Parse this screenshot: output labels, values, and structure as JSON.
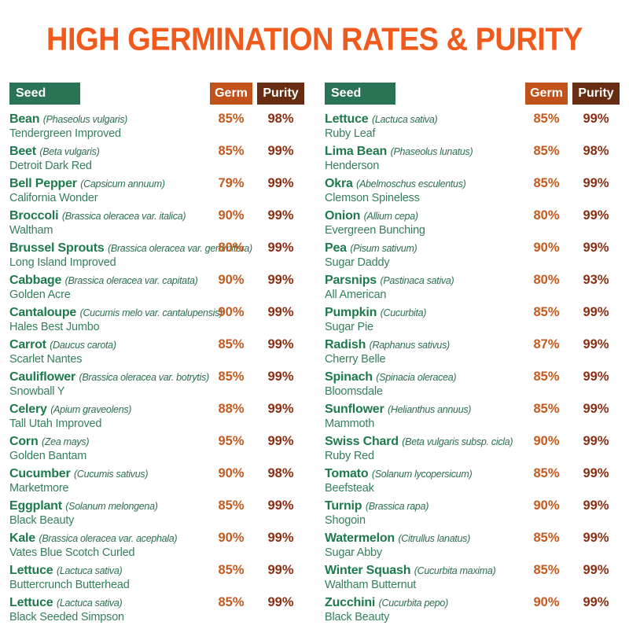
{
  "title": "HIGH GERMINATION RATES & PURITY",
  "colors": {
    "title": "#F05A1D",
    "seed_badge": "#2B7355",
    "germ_badge": "#C0521A",
    "purity_badge": "#672C11",
    "seed_name": "#1E7A4D",
    "latin": "#2C6E4E",
    "variety": "#357F5B",
    "germ_value": "#C45A1D",
    "purity_value": "#8A2E12"
  },
  "headers": {
    "seed": "Seed",
    "germ": "Germ",
    "purity": "Purity"
  },
  "columns": {
    "left": {
      "rows": [
        {
          "name": "Bean",
          "latin": "(Phaseolus vulgaris)",
          "variety": "Tendergreen Improved",
          "germ": "85%",
          "purity": "98%"
        },
        {
          "name": "Beet",
          "latin": "(Beta vulgaris)",
          "variety": "Detroit Dark Red",
          "germ": "85%",
          "purity": "99%"
        },
        {
          "name": "Bell Pepper",
          "latin": "(Capsicum annuum)",
          "variety": "California Wonder",
          "germ": "79%",
          "purity": "99%"
        },
        {
          "name": "Broccoli",
          "latin": "(Brassica oleracea var. italica)",
          "variety": "Waltham",
          "germ": "90%",
          "purity": "99%"
        },
        {
          "name": "Brussel Sprouts",
          "latin": "(Brassica oleracea var. gemmifera)",
          "variety": "Long Island Improved",
          "germ": "80%",
          "purity": "99%"
        },
        {
          "name": "Cabbage",
          "latin": "(Brassica oleracea var. capitata)",
          "variety": "Golden Acre",
          "germ": "90%",
          "purity": "99%"
        },
        {
          "name": "Cantaloupe",
          "latin": "(Cucumis melo var. cantalupensis)",
          "variety": "Hales Best Jumbo",
          "germ": "90%",
          "purity": "99%"
        },
        {
          "name": "Carrot",
          "latin": "(Daucus carota)",
          "variety": "Scarlet Nantes",
          "germ": "85%",
          "purity": "99%"
        },
        {
          "name": "Cauliflower",
          "latin": "(Brassica oleracea var. botrytis)",
          "variety": "Snowball Y",
          "germ": "85%",
          "purity": "99%"
        },
        {
          "name": "Celery",
          "latin": "(Apium graveolens)",
          "variety": "Tall Utah Improved",
          "germ": "88%",
          "purity": "99%"
        },
        {
          "name": "Corn",
          "latin": "(Zea mays)",
          "variety": "Golden Bantam",
          "germ": "95%",
          "purity": "99%"
        },
        {
          "name": "Cucumber",
          "latin": "(Cucumis sativus)",
          "variety": "Marketmore",
          "germ": "90%",
          "purity": "98%"
        },
        {
          "name": "Eggplant",
          "latin": "(Solanum melongena)",
          "variety": "Black Beauty",
          "germ": "85%",
          "purity": "99%"
        },
        {
          "name": "Kale",
          "latin": "(Brassica oleracea var. acephala)",
          "variety": "Vates Blue Scotch Curled",
          "germ": "90%",
          "purity": "99%"
        },
        {
          "name": "Lettuce",
          "latin": "(Lactuca sativa)",
          "variety": "Buttercrunch Butterhead",
          "germ": "85%",
          "purity": "99%"
        },
        {
          "name": "Lettuce",
          "latin": "(Lactuca sativa)",
          "variety": "Black Seeded Simpson",
          "germ": "85%",
          "purity": "99%"
        }
      ]
    },
    "right": {
      "rows": [
        {
          "name": "Lettuce",
          "latin": "(Lactuca sativa)",
          "variety": "Ruby Leaf",
          "germ": "85%",
          "purity": "99%"
        },
        {
          "name": "Lima Bean",
          "latin": "(Phaseolus lunatus)",
          "variety": "Henderson",
          "germ": "85%",
          "purity": "98%"
        },
        {
          "name": "Okra",
          "latin": "(Abelmoschus esculentus)",
          "variety": "Clemson Spineless",
          "germ": "85%",
          "purity": "99%"
        },
        {
          "name": "Onion",
          "latin": "(Allium cepa)",
          "variety": "Evergreen Bunching",
          "germ": "80%",
          "purity": "99%"
        },
        {
          "name": "Pea",
          "latin": "(Pisum sativum)",
          "variety": "Sugar Daddy",
          "germ": "90%",
          "purity": "99%"
        },
        {
          "name": "Parsnips",
          "latin": "(Pastinaca sativa)",
          "variety": "All American",
          "germ": "80%",
          "purity": "93%"
        },
        {
          "name": "Pumpkin",
          "latin": "(Cucurbita)",
          "variety": "Sugar Pie",
          "germ": "85%",
          "purity": "99%"
        },
        {
          "name": "Radish",
          "latin": "(Raphanus sativus)",
          "variety": "Cherry Belle",
          "germ": "87%",
          "purity": "99%"
        },
        {
          "name": "Spinach",
          "latin": "(Spinacia oleracea)",
          "variety": "Bloomsdale",
          "germ": "85%",
          "purity": "99%"
        },
        {
          "name": "Sunflower",
          "latin": "(Helianthus annuus)",
          "variety": "Mammoth",
          "germ": "85%",
          "purity": "99%"
        },
        {
          "name": "Swiss Chard",
          "latin": "(Beta vulgaris subsp. cicla)",
          "variety": "Ruby Red",
          "germ": "90%",
          "purity": "99%"
        },
        {
          "name": "Tomato",
          "latin": "(Solanum lycopersicum)",
          "variety": "Beefsteak",
          "germ": "85%",
          "purity": "99%"
        },
        {
          "name": "Turnip",
          "latin": "(Brassica rapa)",
          "variety": "Shogoin",
          "germ": "90%",
          "purity": "99%"
        },
        {
          "name": "Watermelon",
          "latin": "(Citrullus lanatus)",
          "variety": "Sugar Abby",
          "germ": "85%",
          "purity": "99%"
        },
        {
          "name": "Winter Squash",
          "latin": "(Cucurbita maxima)",
          "variety": "Waltham Butternut",
          "germ": "85%",
          "purity": "99%"
        },
        {
          "name": "Zucchini",
          "latin": "(Cucurbita pepo)",
          "variety": "Black Beauty",
          "germ": "90%",
          "purity": "99%"
        }
      ]
    }
  }
}
